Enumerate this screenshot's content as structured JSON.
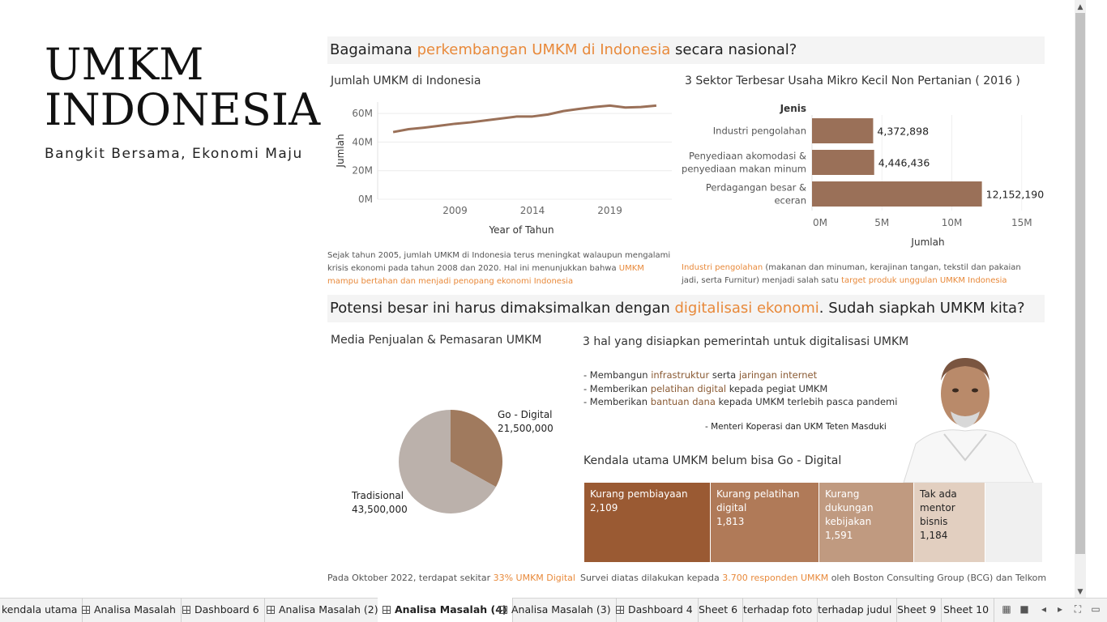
{
  "brand": {
    "title_line1": "UMKM",
    "title_line2": "INDONESIA",
    "subtitle": "Bangkit Bersama, Ekonomi Maju"
  },
  "section1": {
    "pre": "Bagaimana ",
    "highlight": "perkembangan UMKM di Indonesia",
    "post": " secara nasional?"
  },
  "section2": {
    "pre": "Potensi besar ini harus dimaksimalkan dengan ",
    "highlight": "digitalisasi ekonomi",
    "post": ". Sudah siapkah UMKM kita?"
  },
  "line_panel": {
    "title": "Jumlah UMKM di Indonesia",
    "note_text": "Sejak tahun 2005, jumlah UMKM di Indonesia terus meningkat walaupun mengalami krisis ekonomi pada tahun 2008 dan 2020. Hal ini menunjukkan bahwa",
    "note_highlight": "UMKM mampu bertahan dan menjadi penopang ekonomi Indonesia"
  },
  "bar_panel": {
    "title": "3 Sektor Terbesar Usaha Mikro Kecil Non Pertanian ( 2016 )",
    "note_h1": "Industri pengolahan",
    "note_t1": " (makanan dan minuman, kerajinan tangan, tekstil dan pakaian jadi,  serta Furnitur) menjadi salah satu ",
    "note_h2": "target produk unggulan UMKM Indonesia"
  },
  "pie_panel": {
    "title": "Media Penjualan & Pemasaran UMKM",
    "note_text": "Pada Oktober 2022, terdapat sekitar ",
    "note_highlight": "33% UMKM Digital"
  },
  "gov_panel": {
    "title": "3 hal yang disiapkan pemerintah untuk digitalisasi UMKM",
    "b1_pre": "- Membangun ",
    "b1_h1": "infrastruktur",
    "b1_mid": " serta ",
    "b1_h2": "jaringan internet",
    "b2_pre": "- Memberikan ",
    "b2_h": "pelatihan digital",
    "b2_post": " kepada pegiat UMKM",
    "b3_pre": "- Memberikan ",
    "b3_h": "bantuan dana",
    "b3_post": " kepada UMKM terlebih pasca pandemi",
    "quote": "- Menteri Koperasi dan UKM Teten Masduki"
  },
  "treemap_panel": {
    "title": "Kendala utama UMKM belum bisa Go - Digital",
    "cells": [
      {
        "label": "Kurang pembiayaan",
        "value": "2,109",
        "color": "#9a5a33"
      },
      {
        "label": "Kurang pelatihan digital",
        "value": "1,813",
        "color": "#b07a58"
      },
      {
        "label": "Kurang dukungan kebijakan",
        "value": "1,591",
        "color": "#c09a80"
      },
      {
        "label": "Tak ada mentor bisnis",
        "value": "1,184",
        "color": "#e2cfc0"
      }
    ],
    "note_pre": "Survei diatas dilakukan kepada ",
    "note_h": "3.700 responden UMKM",
    "note_post": " oleh Boston Consulting Group (BCG) dan Telkom"
  },
  "chart_data": [
    {
      "type": "line",
      "title": "Jumlah UMKM di Indonesia",
      "xlabel": "Year of Tahun",
      "ylabel": "Jumlah",
      "x": [
        2005,
        2006,
        2007,
        2008,
        2009,
        2010,
        2011,
        2012,
        2013,
        2014,
        2015,
        2016,
        2017,
        2018,
        2019,
        2020,
        2021,
        2022
      ],
      "values": [
        47.0,
        49.0,
        50.1,
        51.4,
        52.8,
        53.8,
        55.2,
        56.5,
        57.9,
        57.9,
        59.3,
        61.7,
        63.2,
        64.5,
        65.5,
        64.2,
        64.5,
        65.5
      ],
      "x_ticks": [
        "2009",
        "2014",
        "2019"
      ],
      "y_ticks": [
        "0M",
        "20M",
        "40M",
        "60M"
      ],
      "ylim": [
        0,
        68
      ],
      "color": "#9a7058"
    },
    {
      "type": "bar",
      "title": "3 Sektor Terbesar Usaha Mikro Kecil Non Pertanian ( 2016 )",
      "category_header": "Jenis",
      "xlabel": "Jumlah",
      "categories": [
        "Industri pengolahan",
        "Penyediaan akomodasi & penyediaan makan minum",
        "Perdagangan besar & eceran"
      ],
      "values": [
        4372898,
        4446436,
        12152190
      ],
      "value_labels": [
        "4,372,898",
        "4,446,436",
        "12,152,190"
      ],
      "x_ticks": [
        "0M",
        "5M",
        "10M",
        "15M"
      ],
      "xlim": [
        0,
        16000000
      ],
      "color": "#9a7058"
    },
    {
      "type": "pie",
      "title": "Media Penjualan & Pemasaran UMKM",
      "slices": [
        {
          "name": "Go - Digital",
          "value": 21500000,
          "label": "21,500,000",
          "color": "#a07a5e"
        },
        {
          "name": "Tradisional",
          "value": 43500000,
          "label": "43,500,000",
          "color": "#bbb1ab"
        }
      ]
    }
  ],
  "tabs": [
    {
      "label": "kendala utama",
      "icon": false
    },
    {
      "label": "Analisa Masalah",
      "icon": true
    },
    {
      "label": "Dashboard 6",
      "icon": true
    },
    {
      "label": "Analisa Masalah (2)",
      "icon": true
    },
    {
      "label": "Analisa Masalah (4)",
      "icon": true,
      "active": true
    },
    {
      "label": "Analisa Masalah (3)",
      "icon": true
    },
    {
      "label": "Dashboard 4",
      "icon": true
    },
    {
      "label": "Sheet 6",
      "icon": false
    },
    {
      "label": "terhadap foto",
      "icon": false
    },
    {
      "label": "terhadap judul",
      "icon": false
    },
    {
      "label": "Sheet 9",
      "icon": false
    },
    {
      "label": "Sheet 10",
      "icon": false
    }
  ],
  "icons": {
    "scroll_up": "chevron-up-icon",
    "scroll_down": "chevron-down-icon",
    "tab_grid": "dashboard-grid-icon"
  }
}
